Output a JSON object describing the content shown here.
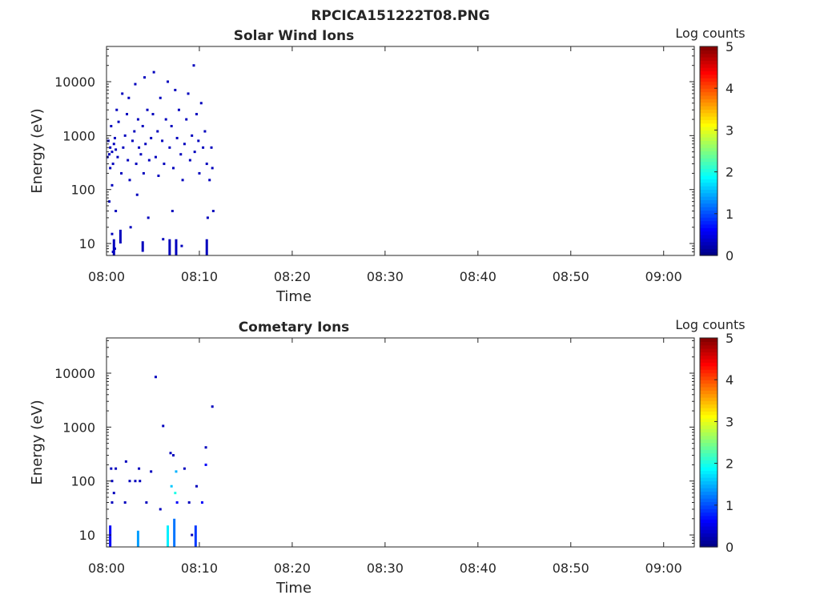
{
  "page_title": "RPCICA151222T08.PNG",
  "chart_data": [
    {
      "type": "heatmap",
      "title": "Solar Wind Ions",
      "xlabel": "Time",
      "ylabel": "Energy (eV)",
      "x_ticks": [
        "08:00",
        "08:10",
        "08:20",
        "08:30",
        "08:40",
        "08:50",
        "09:00"
      ],
      "x_range_minutes": [
        0,
        63.3
      ],
      "y_scale": "log",
      "y_ticks": [
        "10",
        "100",
        "1000",
        "10000"
      ],
      "y_range": [
        6,
        45000
      ],
      "colorbar": {
        "label": "Log counts",
        "range": [
          0,
          5
        ],
        "ticks": [
          "0",
          "1",
          "2",
          "3",
          "4",
          "5"
        ],
        "colormap": "jet"
      },
      "data_extent_minutes": [
        0,
        11.5
      ],
      "cells": [
        [
          0.2,
          800,
          0.3
        ],
        [
          0.4,
          600,
          0.3
        ],
        [
          0.6,
          500,
          0.3
        ],
        [
          0.3,
          450,
          0.3
        ],
        [
          0.8,
          700,
          0.3
        ],
        [
          0.5,
          1500,
          0.3
        ],
        [
          0.7,
          300,
          0.3
        ],
        [
          0.4,
          250,
          0.3
        ],
        [
          0.9,
          900,
          0.3
        ],
        [
          1.0,
          550,
          0.3
        ],
        [
          1.2,
          400,
          0.3
        ],
        [
          1.3,
          1800,
          0.3
        ],
        [
          1.1,
          3000,
          0.3
        ],
        [
          0.6,
          120,
          0.3
        ],
        [
          0.3,
          60,
          0.3
        ],
        [
          0.6,
          15,
          0.3
        ],
        [
          0.9,
          8,
          0.3
        ],
        [
          0.7,
          7,
          0.3
        ],
        [
          1.0,
          40,
          0.3
        ],
        [
          1.6,
          200,
          0.3
        ],
        [
          1.8,
          600,
          0.3
        ],
        [
          2.0,
          1000,
          0.3
        ],
        [
          2.2,
          2500,
          0.3
        ],
        [
          1.7,
          6000,
          0.3
        ],
        [
          2.3,
          350,
          0.3
        ],
        [
          2.5,
          150,
          0.3
        ],
        [
          2.4,
          5000,
          0.3
        ],
        [
          2.6,
          20,
          0.3
        ],
        [
          2.8,
          800,
          0.3
        ],
        [
          3.0,
          1200,
          0.3
        ],
        [
          3.2,
          300,
          0.3
        ],
        [
          3.4,
          2000,
          0.3
        ],
        [
          3.1,
          9000,
          0.3
        ],
        [
          3.3,
          80,
          0.3
        ],
        [
          3.5,
          600,
          0.3
        ],
        [
          3.7,
          450,
          0.3
        ],
        [
          3.9,
          1500,
          0.3
        ],
        [
          4.0,
          200,
          0.3
        ],
        [
          4.2,
          700,
          0.3
        ],
        [
          4.1,
          12000,
          0.3
        ],
        [
          4.4,
          3000,
          0.3
        ],
        [
          4.6,
          350,
          0.3
        ],
        [
          4.5,
          30,
          0.3
        ],
        [
          4.8,
          900,
          0.3
        ],
        [
          5.0,
          2500,
          0.3
        ],
        [
          5.1,
          15000,
          0.3
        ],
        [
          5.3,
          400,
          0.3
        ],
        [
          5.5,
          1200,
          0.3
        ],
        [
          5.6,
          180,
          0.3
        ],
        [
          5.8,
          5000,
          0.3
        ],
        [
          6.0,
          800,
          0.3
        ],
        [
          6.2,
          300,
          0.3
        ],
        [
          6.1,
          12,
          0.3
        ],
        [
          6.4,
          2000,
          0.3
        ],
        [
          6.6,
          10000,
          0.3
        ],
        [
          6.8,
          600,
          0.3
        ],
        [
          7.0,
          1500,
          0.3
        ],
        [
          7.2,
          250,
          0.3
        ],
        [
          7.1,
          40,
          0.3
        ],
        [
          7.4,
          7000,
          0.3
        ],
        [
          7.6,
          900,
          0.3
        ],
        [
          7.8,
          3000,
          0.3
        ],
        [
          8.0,
          450,
          0.3
        ],
        [
          8.2,
          150,
          0.3
        ],
        [
          8.1,
          9,
          0.3
        ],
        [
          8.4,
          700,
          0.3
        ],
        [
          8.6,
          2000,
          0.3
        ],
        [
          8.8,
          6000,
          0.3
        ],
        [
          9.0,
          350,
          0.3
        ],
        [
          9.2,
          1000,
          0.3
        ],
        [
          9.4,
          20000,
          0.3
        ],
        [
          9.5,
          500,
          0.3
        ],
        [
          9.7,
          2500,
          0.3
        ],
        [
          9.9,
          800,
          0.3
        ],
        [
          10.0,
          200,
          0.3
        ],
        [
          10.2,
          4000,
          0.3
        ],
        [
          10.4,
          600,
          0.3
        ],
        [
          10.6,
          1200,
          0.3
        ],
        [
          10.8,
          300,
          0.3
        ],
        [
          10.9,
          30,
          0.3
        ],
        [
          11.1,
          150,
          0.3
        ],
        [
          11.3,
          600,
          0.3
        ],
        [
          11.4,
          250,
          0.3
        ],
        [
          11.5,
          40,
          0.3
        ],
        [
          0.1,
          400,
          0.3
        ]
      ],
      "columns": [
        [
          0.8,
          6,
          12,
          0.3
        ],
        [
          1.5,
          10,
          18,
          0.3
        ],
        [
          3.9,
          7,
          11,
          0.3
        ],
        [
          6.8,
          6,
          12,
          0.3
        ],
        [
          7.5,
          6,
          12,
          0.3
        ],
        [
          10.8,
          6,
          12,
          0.3
        ]
      ]
    },
    {
      "type": "heatmap",
      "title": "Cometary Ions",
      "xlabel": "Time",
      "ylabel": "Energy (eV)",
      "x_ticks": [
        "08:00",
        "08:10",
        "08:20",
        "08:30",
        "08:40",
        "08:50",
        "09:00"
      ],
      "x_range_minutes": [
        0,
        63.3
      ],
      "y_scale": "log",
      "y_ticks": [
        "10",
        "100",
        "1000",
        "10000"
      ],
      "y_range": [
        6,
        45000
      ],
      "colorbar": {
        "label": "Log counts",
        "range": [
          0,
          5
        ],
        "ticks": [
          "0",
          "1",
          "2",
          "3",
          "4",
          "5"
        ],
        "colormap": "jet"
      },
      "data_extent_minutes": [
        0,
        11.5
      ],
      "cells": [
        [
          0.5,
          170,
          0.3
        ],
        [
          1.0,
          170,
          0.3
        ],
        [
          0.6,
          100,
          0.3
        ],
        [
          0.8,
          60,
          0.3
        ],
        [
          0.6,
          40,
          0.3
        ],
        [
          2.1,
          230,
          0.3
        ],
        [
          2.5,
          100,
          0.3
        ],
        [
          3.1,
          100,
          0.3
        ],
        [
          3.6,
          100,
          0.3
        ],
        [
          2.0,
          40,
          0.3
        ],
        [
          3.5,
          170,
          0.3
        ],
        [
          4.3,
          40,
          0.3
        ],
        [
          4.8,
          150,
          0.3
        ],
        [
          5.3,
          8500,
          0.3
        ],
        [
          6.1,
          1050,
          0.3
        ],
        [
          6.9,
          330,
          0.3
        ],
        [
          7.2,
          300,
          0.3
        ],
        [
          7.0,
          80,
          1.6
        ],
        [
          7.4,
          60,
          2.0
        ],
        [
          7.5,
          150,
          1.5
        ],
        [
          7.6,
          40,
          0.6
        ],
        [
          8.4,
          170,
          0.3
        ],
        [
          8.9,
          40,
          0.3
        ],
        [
          9.7,
          80,
          0.3
        ],
        [
          10.3,
          40,
          0.6
        ],
        [
          10.7,
          200,
          0.6
        ],
        [
          10.7,
          420,
          0.3
        ],
        [
          11.4,
          2400,
          0.3
        ],
        [
          9.2,
          10,
          0.3
        ],
        [
          5.8,
          30,
          0.3
        ]
      ],
      "columns": [
        [
          0.4,
          6,
          15,
          0.6
        ],
        [
          3.4,
          6,
          12,
          1.4
        ],
        [
          6.6,
          6,
          15,
          1.8
        ],
        [
          7.3,
          6,
          20,
          1.2
        ],
        [
          9.6,
          6,
          15,
          0.9
        ]
      ]
    }
  ]
}
